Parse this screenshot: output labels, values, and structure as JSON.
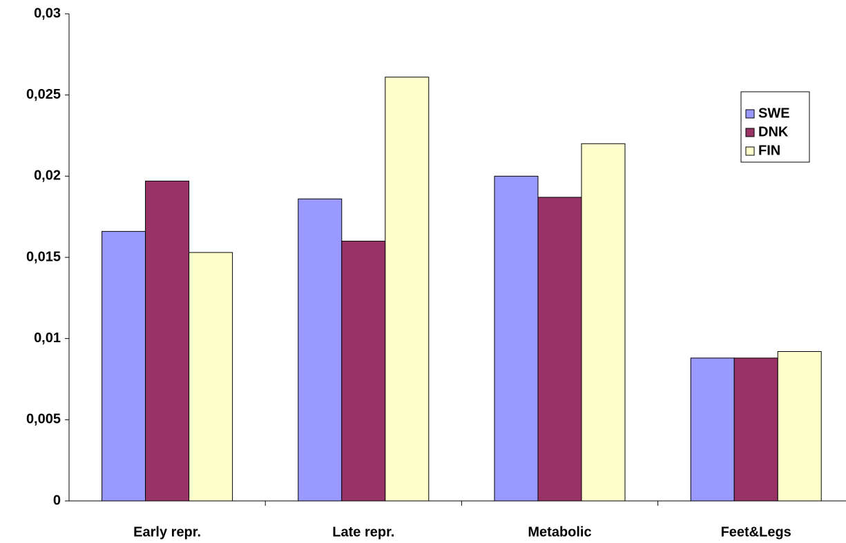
{
  "chart_data": {
    "type": "bar",
    "categories": [
      "Early repr.",
      "Late repr.",
      "Metabolic",
      "Feet&Legs"
    ],
    "series": [
      {
        "name": "SWE",
        "color": "#9999ff",
        "values": [
          0.0166,
          0.0186,
          0.02,
          0.0088
        ]
      },
      {
        "name": "DNK",
        "color": "#993366",
        "values": [
          0.0197,
          0.016,
          0.0187,
          0.0088
        ]
      },
      {
        "name": "FIN",
        "color": "#ffffcc",
        "values": [
          0.0153,
          0.0261,
          0.022,
          0.0092
        ]
      }
    ],
    "ylim": [
      0,
      0.03
    ],
    "yticks": [
      0,
      {
        "value": 0.005,
        "label": "0,005"
      },
      {
        "value": 0.01,
        "label": "0,01"
      },
      {
        "value": 0.015,
        "label": "0,015"
      },
      {
        "value": 0.02,
        "label": "0,02"
      },
      {
        "value": 0.025,
        "label": "0,025"
      },
      {
        "value": 0.03,
        "label": "0,03"
      }
    ],
    "grid": false,
    "legend": "upper right"
  }
}
